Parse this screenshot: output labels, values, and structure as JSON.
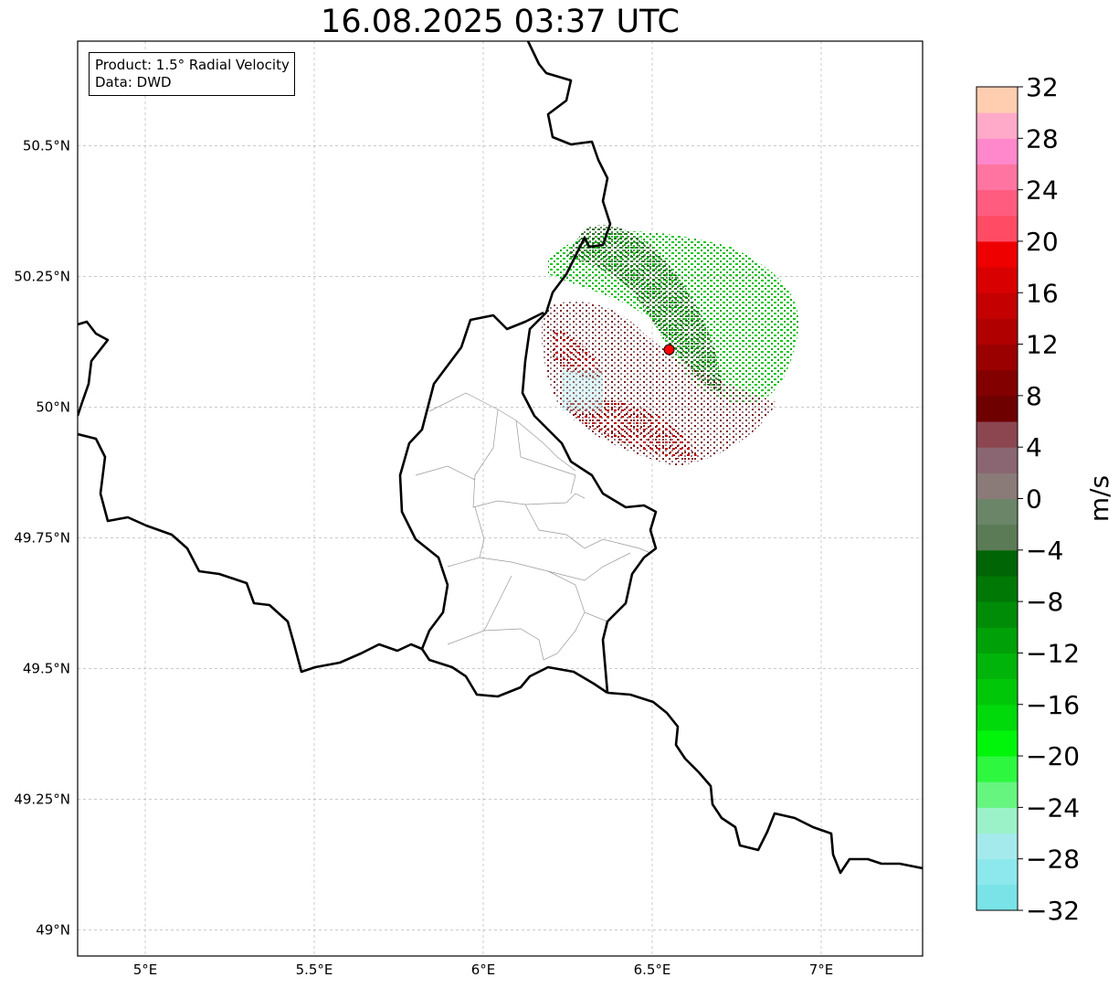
{
  "title": "16.08.2025 03:37 UTC",
  "info_box": {
    "product_line": "Product: 1.5° Radial Velocity",
    "data_line": "Data: DWD"
  },
  "map": {
    "lon_range": [
      4.8,
      7.3
    ],
    "lat_range": [
      48.95,
      50.7
    ],
    "gridlines": true,
    "lon_ticks": [
      {
        "value": 5.0,
        "label": "5°E"
      },
      {
        "value": 5.5,
        "label": "5.5°E"
      },
      {
        "value": 6.0,
        "label": "6°E"
      },
      {
        "value": 6.5,
        "label": "6.5°E"
      },
      {
        "value": 7.0,
        "label": "7°E"
      }
    ],
    "lat_ticks": [
      {
        "value": 49.0,
        "label": "49°N"
      },
      {
        "value": 49.25,
        "label": "49.25°N"
      },
      {
        "value": 49.5,
        "label": "49.5°N"
      },
      {
        "value": 49.75,
        "label": "49.75°N"
      },
      {
        "value": 50.0,
        "label": "50°N"
      },
      {
        "value": 50.25,
        "label": "50.25°N"
      },
      {
        "value": 50.5,
        "label": "50.5°N"
      }
    ],
    "radar_site": {
      "lon": 6.55,
      "lat": 50.11,
      "color": "#ff0000"
    }
  },
  "colorbar": {
    "label": "m/s",
    "vmin": -32,
    "vmax": 32,
    "tick_labels": [
      "−32",
      "−28",
      "−24",
      "−20",
      "−16",
      "−12",
      "−8",
      "−4",
      "0",
      "4",
      "8",
      "12",
      "16",
      "20",
      "24",
      "28",
      "32"
    ],
    "colors": [
      "#79e3e8",
      "#8ce8ec",
      "#a4e9ec",
      "#9bf2c8",
      "#66f57f",
      "#2df83f",
      "#00f50a",
      "#00d90a",
      "#00c809",
      "#00b409",
      "#00a008",
      "#008c07",
      "#007806",
      "#006505",
      "#5b7b57",
      "#6b8569",
      "#8a7a78",
      "#8a6672",
      "#8b4650",
      "#6e0000",
      "#820000",
      "#9a0000",
      "#b00000",
      "#c40000",
      "#d80000",
      "#ee0000",
      "#ff4c64",
      "#ff5c80",
      "#ff74a0",
      "#ff88cc",
      "#ffaac8",
      "#ffcdb0"
    ]
  }
}
